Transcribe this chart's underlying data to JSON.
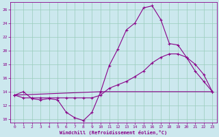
{
  "xlabel": "Windchill (Refroidissement éolien,°C)",
  "bg_color": "#cce8ee",
  "line_color": "#880088",
  "grid_color": "#99ccbb",
  "xlim": [
    -0.5,
    23.5
  ],
  "ylim": [
    9.5,
    27
  ],
  "yticks": [
    10,
    12,
    14,
    16,
    18,
    20,
    22,
    24,
    26
  ],
  "xticks": [
    0,
    1,
    2,
    3,
    4,
    5,
    6,
    7,
    8,
    9,
    10,
    11,
    12,
    13,
    14,
    15,
    16,
    17,
    18,
    19,
    20,
    21,
    22,
    23
  ],
  "series1_x": [
    0,
    1,
    2,
    3,
    4,
    5,
    6,
    7,
    8,
    9,
    10,
    11,
    12,
    13,
    14,
    15,
    16,
    17,
    18,
    19,
    20,
    21,
    22,
    23
  ],
  "series1_y": [
    13.5,
    14.0,
    13.0,
    12.8,
    13.0,
    12.8,
    11.0,
    10.2,
    9.8,
    11.0,
    14.0,
    17.8,
    20.2,
    23.0,
    24.0,
    26.2,
    26.5,
    24.5,
    21.0,
    20.8,
    19.0,
    17.0,
    15.5,
    14.0
  ],
  "series2_x": [
    0,
    1,
    2,
    3,
    4,
    5,
    6,
    7,
    8,
    9,
    10,
    11,
    12,
    13,
    14,
    15,
    16,
    17,
    18,
    19,
    20,
    21,
    22,
    23
  ],
  "series2_y": [
    13.5,
    13.1,
    13.1,
    13.1,
    13.1,
    13.1,
    13.1,
    13.1,
    13.1,
    13.1,
    13.5,
    14.5,
    15.0,
    15.5,
    16.2,
    17.0,
    18.2,
    19.0,
    19.5,
    19.5,
    19.0,
    18.0,
    16.5,
    14.0
  ],
  "series3_x": [
    0,
    10,
    23
  ],
  "series3_y": [
    13.5,
    14.0,
    14.0
  ]
}
